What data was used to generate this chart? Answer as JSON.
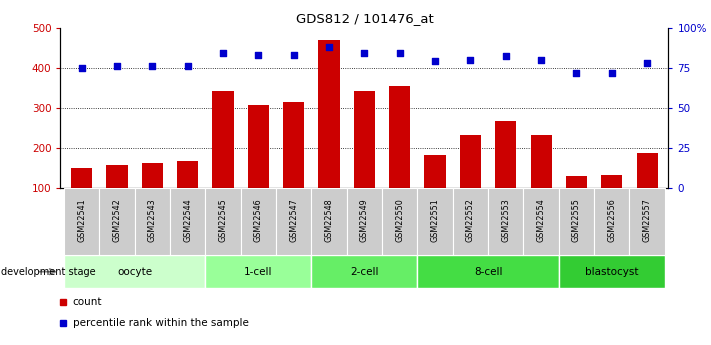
{
  "title": "GDS812 / 101476_at",
  "samples": [
    "GSM22541",
    "GSM22542",
    "GSM22543",
    "GSM22544",
    "GSM22545",
    "GSM22546",
    "GSM22547",
    "GSM22548",
    "GSM22549",
    "GSM22550",
    "GSM22551",
    "GSM22552",
    "GSM22553",
    "GSM22554",
    "GSM22555",
    "GSM22556",
    "GSM22557"
  ],
  "counts": [
    150,
    158,
    162,
    168,
    342,
    308,
    315,
    470,
    342,
    355,
    183,
    233,
    268,
    233,
    130,
    133,
    188
  ],
  "percentiles": [
    75,
    76,
    76,
    76,
    84,
    83,
    83,
    88,
    84,
    84,
    79,
    80,
    82,
    80,
    72,
    72,
    78
  ],
  "bar_color": "#cc0000",
  "dot_color": "#0000cc",
  "ylim_left": [
    100,
    500
  ],
  "ylim_right": [
    0,
    100
  ],
  "yticks_left": [
    100,
    200,
    300,
    400,
    500
  ],
  "yticks_right": [
    0,
    25,
    50,
    75,
    100
  ],
  "ytick_labels_right": [
    "0",
    "25",
    "50",
    "75",
    "100%"
  ],
  "grid_values": [
    200,
    300,
    400
  ],
  "groups": [
    {
      "label": "oocyte",
      "start": 0,
      "end": 3,
      "color": "#ccffcc"
    },
    {
      "label": "1-cell",
      "start": 4,
      "end": 6,
      "color": "#99ff99"
    },
    {
      "label": "2-cell",
      "start": 7,
      "end": 9,
      "color": "#66ee66"
    },
    {
      "label": "8-cell",
      "start": 10,
      "end": 13,
      "color": "#44dd44"
    },
    {
      "label": "blastocyst",
      "start": 14,
      "end": 16,
      "color": "#33cc33"
    }
  ],
  "background_color": "#ffffff",
  "sample_bg_color": "#cccccc",
  "legend_count_label": "count",
  "legend_pct_label": "percentile rank within the sample",
  "dev_stage_label": "development stage"
}
